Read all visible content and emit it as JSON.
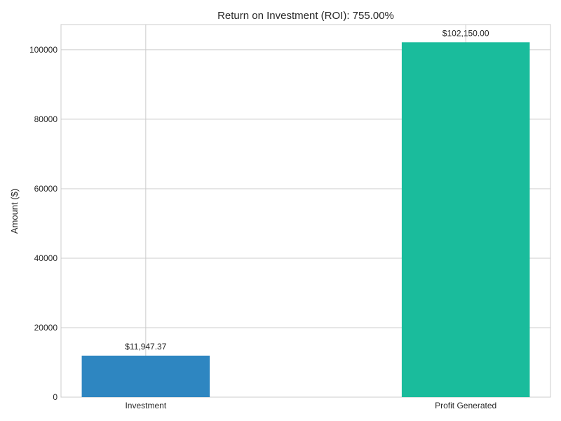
{
  "chart_data": {
    "type": "bar",
    "title": "Return on Investment (ROI): 755.00%",
    "xlabel": "",
    "ylabel": "Amount ($)",
    "categories": [
      "Investment",
      "Profit Generated"
    ],
    "values": [
      11947.37,
      102150.0
    ],
    "data_labels": [
      "$11,947.37",
      "$102,150.00"
    ],
    "colors": [
      "#2e86c1",
      "#1abc9c"
    ],
    "ylim": [
      0,
      107255
    ],
    "yticks": [
      0,
      20000,
      40000,
      60000,
      80000,
      100000
    ],
    "ytick_labels": [
      "0",
      "20000",
      "40000",
      "60000",
      "80000",
      "100000"
    ],
    "grid": true,
    "legend": "none"
  }
}
